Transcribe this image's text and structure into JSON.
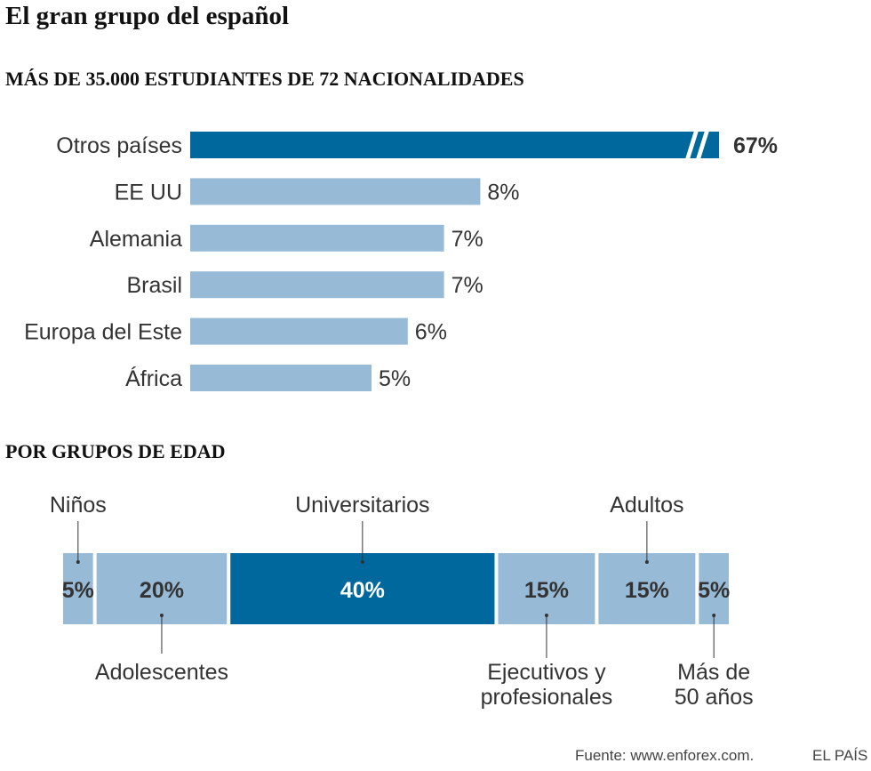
{
  "title": "El gran grupo del español",
  "source": "Fuente: www.enforex.com.",
  "brand": "EL PAÍS",
  "colors": {
    "highlight": "#01689d",
    "light": "#97bad6",
    "text": "#333333"
  },
  "chart_data": [
    {
      "type": "bar",
      "orientation": "horizontal",
      "title": "MÁS DE 35.000 ESTUDIANTES DE 72 NACIONALIDADES",
      "categories": [
        "Otros países",
        "EE UU",
        "Alemania",
        "Brasil",
        "Europa del Este",
        "África"
      ],
      "values": [
        67,
        8,
        7,
        7,
        6,
        5
      ],
      "labels": [
        "67%",
        "8%",
        "7%",
        "7%",
        "6%",
        "5%"
      ],
      "highlight": [
        true,
        false,
        false,
        false,
        false,
        false
      ],
      "axis_break": [
        true,
        false,
        false,
        false,
        false,
        false
      ],
      "unit": "%"
    },
    {
      "type": "bar",
      "orientation": "stacked-horizontal",
      "title": "POR GRUPOS DE EDAD",
      "categories": [
        "Niños",
        "Adolescentes",
        "Universitarios",
        "Ejecutivos y profesionales",
        "Adultos",
        "Más de 50 años"
      ],
      "values": [
        5,
        20,
        40,
        15,
        15,
        5
      ],
      "labels": [
        "5%",
        "20%",
        "40%",
        "15%",
        "15%",
        "5%"
      ],
      "highlight": [
        false,
        false,
        true,
        false,
        false,
        false
      ],
      "label_position": [
        "top",
        "bottom",
        "top",
        "bottom",
        "top",
        "bottom"
      ],
      "unit": "%"
    }
  ]
}
